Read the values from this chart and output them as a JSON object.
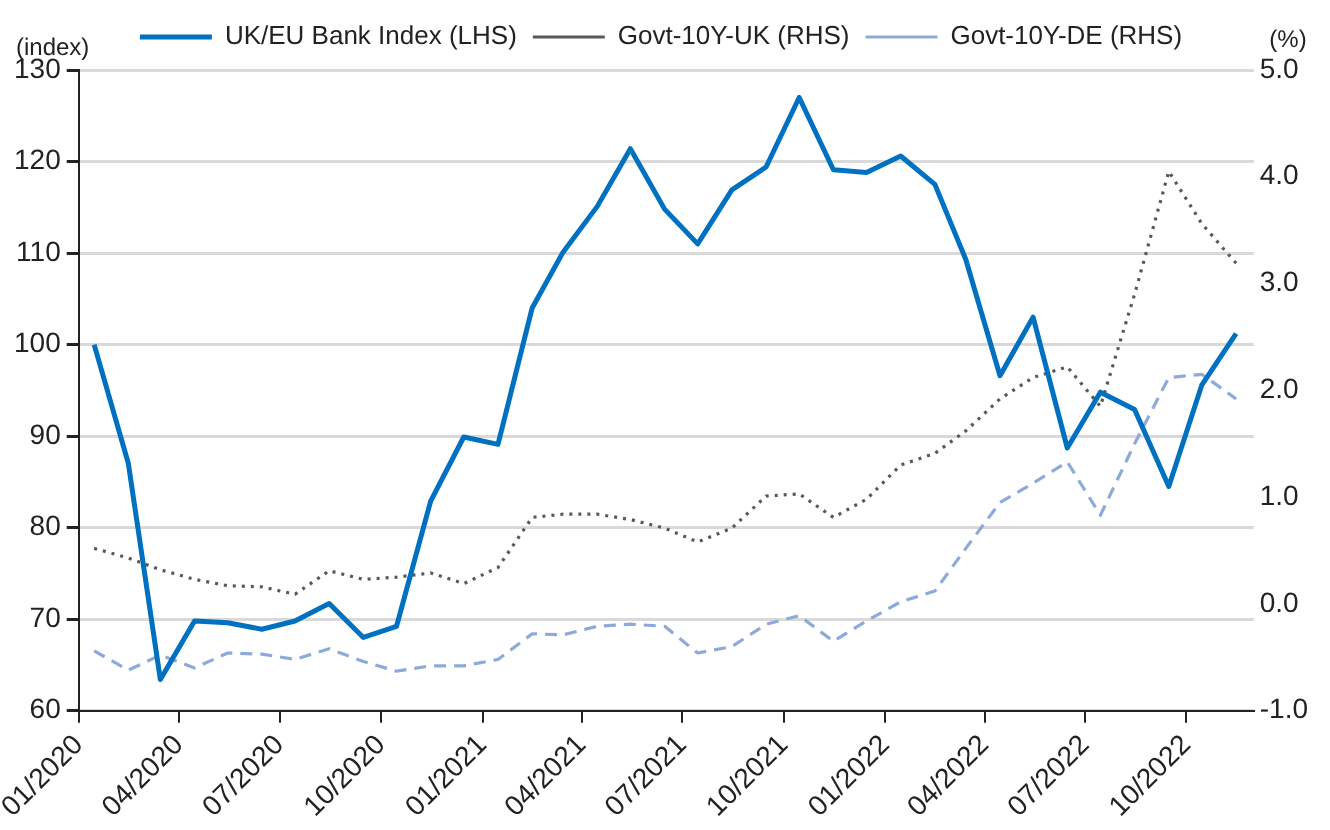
{
  "chart_data": {
    "type": "line",
    "ylabel": "(index)",
    "y2label": "(%)",
    "x": [
      "2020-01-15",
      "2020-02-15",
      "2020-03-15",
      "2020-04-15",
      "2020-05-15",
      "2020-06-15",
      "2020-07-15",
      "2020-08-15",
      "2020-09-15",
      "2020-10-15",
      "2020-11-15",
      "2020-12-15",
      "2021-01-15",
      "2021-02-15",
      "2021-03-15",
      "2021-04-15",
      "2021-05-15",
      "2021-06-15",
      "2021-07-15",
      "2021-08-15",
      "2021-09-15",
      "2021-10-15",
      "2021-11-15",
      "2021-12-15",
      "2022-01-15",
      "2022-02-15",
      "2022-03-15",
      "2022-04-15",
      "2022-05-15",
      "2022-06-15",
      "2022-07-15",
      "2022-08-15",
      "2022-09-15",
      "2022-10-15",
      "2022-11-15"
    ],
    "xlim": [
      "2020-01-01",
      "2022-12-01"
    ],
    "xticks": [
      {
        "value": "2020-01",
        "label": "01/2020"
      },
      {
        "value": "2020-04",
        "label": "04/2020"
      },
      {
        "value": "2020-07",
        "label": "07/2020"
      },
      {
        "value": "2020-10",
        "label": "10/2020"
      },
      {
        "value": "2021-01",
        "label": "01/2021"
      },
      {
        "value": "2021-04",
        "label": "04/2021"
      },
      {
        "value": "2021-07",
        "label": "07/2021"
      },
      {
        "value": "2021-10",
        "label": "10/2021"
      },
      {
        "value": "2022-01",
        "label": "01/2022"
      },
      {
        "value": "2022-04",
        "label": "04/2022"
      },
      {
        "value": "2022-07",
        "label": "07/2022"
      },
      {
        "value": "2022-10",
        "label": "10/2022"
      }
    ],
    "ylim": [
      60,
      130
    ],
    "yticks": [
      60,
      70,
      80,
      90,
      100,
      110,
      120,
      130
    ],
    "y2lim": [
      -1,
      5
    ],
    "y2ticks": [
      {
        "value": -1,
        "label": "-1.0"
      },
      {
        "value": 0,
        "label": "0.0"
      },
      {
        "value": 1,
        "label": "1.0"
      },
      {
        "value": 2,
        "label": "2.0"
      },
      {
        "value": 3,
        "label": "3.0"
      },
      {
        "value": 4,
        "label": "4.0"
      },
      {
        "value": 5,
        "label": "5.0"
      }
    ],
    "grid": "y",
    "legend": "top",
    "marker": "none",
    "series": [
      {
        "name": "UK/EU Bank Index (LHS)",
        "color": "#0070c0",
        "line_style": "solid",
        "values": [
          100.0,
          87.0,
          63.4,
          69.8,
          69.6,
          68.9,
          69.8,
          71.7,
          68.0,
          69.2,
          82.9,
          89.9,
          89.1,
          104.0,
          110.1,
          115.1,
          121.4,
          114.8,
          111.0,
          116.9,
          119.4,
          127.0,
          119.1,
          118.8,
          120.6,
          117.5,
          109.3,
          96.6,
          103.0,
          88.7,
          94.8,
          92.9,
          84.5,
          95.6,
          101.2
        ]
      },
      {
        "name": "Govt-10Y-UK (RHS)",
        "color": "#595959",
        "line_style": "dotted",
        "axis": "y2",
        "values": [
          0.52,
          0.43,
          0.32,
          0.23,
          0.17,
          0.16,
          0.09,
          0.31,
          0.23,
          0.25,
          0.29,
          0.19,
          0.34,
          0.81,
          0.84,
          0.84,
          0.79,
          0.71,
          0.58,
          0.71,
          1.01,
          1.03,
          0.81,
          0.98,
          1.3,
          1.41,
          1.62,
          1.92,
          2.12,
          2.22,
          1.85,
          2.9,
          4.05,
          3.56,
          3.19
        ]
      },
      {
        "name": "Govt-10Y-DE (RHS)",
        "color": "#8eaadb",
        "line_style": "dashed",
        "axis": "y2",
        "values": [
          -0.44,
          -0.62,
          -0.48,
          -0.6,
          -0.46,
          -0.47,
          -0.52,
          -0.42,
          -0.54,
          -0.63,
          -0.58,
          -0.58,
          -0.52,
          -0.28,
          -0.29,
          -0.21,
          -0.19,
          -0.21,
          -0.46,
          -0.4,
          -0.19,
          -0.11,
          -0.35,
          -0.16,
          0.02,
          0.12,
          0.52,
          0.95,
          1.13,
          1.33,
          0.83,
          1.5,
          2.12,
          2.15,
          1.92
        ]
      }
    ]
  }
}
